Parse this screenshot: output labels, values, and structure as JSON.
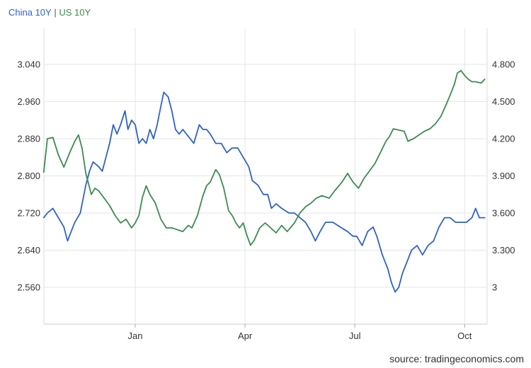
{
  "legend": {
    "items": [
      {
        "name": "China 10Y",
        "color": "#2d62c9"
      },
      {
        "name": "US 10Y",
        "color": "#3a8c50"
      }
    ],
    "separator": " | "
  },
  "source": "source: tradingeconomics.com",
  "chart_data": {
    "type": "line",
    "grid": true,
    "legend_position": "top-left",
    "x_ticks": [
      "Jan",
      "Apr",
      "Jul",
      "Oct"
    ],
    "x_tick_positions": [
      1.0,
      4.0,
      7.0,
      10.0
    ],
    "x_range": [
      -1.5,
      10.6
    ],
    "y_left": {
      "range": [
        2.5,
        3.1
      ],
      "ticks": [
        3.04,
        2.96,
        2.88,
        2.8,
        2.72,
        2.64,
        2.56
      ],
      "tick_labels": [
        "3.040",
        "2.960",
        "2.880",
        "2.800",
        "2.720",
        "2.640",
        "2.560"
      ]
    },
    "y_right": {
      "range": [
        2.8,
        5.0
      ],
      "ticks": [
        4.8,
        4.5,
        4.2,
        3.9,
        3.6,
        3.3,
        3.0
      ],
      "tick_labels": [
        "4.800",
        "4.500",
        "4.200",
        "3.900",
        "3.600",
        "3.300",
        "3"
      ]
    },
    "series": [
      {
        "name": "China 10Y",
        "axis": "left",
        "color": "#2d62c9",
        "points": [
          [
            -1.5,
            2.71
          ],
          [
            -1.4,
            2.72
          ],
          [
            -1.25,
            2.73
          ],
          [
            -1.1,
            2.71
          ],
          [
            -0.95,
            2.69
          ],
          [
            -0.85,
            2.66
          ],
          [
            -0.75,
            2.68
          ],
          [
            -0.65,
            2.7
          ],
          [
            -0.5,
            2.72
          ],
          [
            -0.35,
            2.78
          ],
          [
            -0.25,
            2.81
          ],
          [
            -0.15,
            2.83
          ],
          [
            0.0,
            2.82
          ],
          [
            0.1,
            2.81
          ],
          [
            0.2,
            2.84
          ],
          [
            0.3,
            2.87
          ],
          [
            0.4,
            2.91
          ],
          [
            0.5,
            2.89
          ],
          [
            0.6,
            2.91
          ],
          [
            0.72,
            2.94
          ],
          [
            0.8,
            2.9
          ],
          [
            0.9,
            2.92
          ],
          [
            1.0,
            2.91
          ],
          [
            1.1,
            2.87
          ],
          [
            1.2,
            2.88
          ],
          [
            1.3,
            2.87
          ],
          [
            1.4,
            2.9
          ],
          [
            1.5,
            2.88
          ],
          [
            1.6,
            2.91
          ],
          [
            1.7,
            2.95
          ],
          [
            1.78,
            2.98
          ],
          [
            1.9,
            2.97
          ],
          [
            2.0,
            2.94
          ],
          [
            2.1,
            2.9
          ],
          [
            2.2,
            2.89
          ],
          [
            2.3,
            2.9
          ],
          [
            2.5,
            2.88
          ],
          [
            2.6,
            2.87
          ],
          [
            2.75,
            2.91
          ],
          [
            2.85,
            2.9
          ],
          [
            2.95,
            2.9
          ],
          [
            3.05,
            2.89
          ],
          [
            3.2,
            2.87
          ],
          [
            3.35,
            2.87
          ],
          [
            3.5,
            2.85
          ],
          [
            3.65,
            2.86
          ],
          [
            3.8,
            2.86
          ],
          [
            3.95,
            2.84
          ],
          [
            4.1,
            2.82
          ],
          [
            4.2,
            2.79
          ],
          [
            4.35,
            2.78
          ],
          [
            4.5,
            2.76
          ],
          [
            4.62,
            2.76
          ],
          [
            4.72,
            2.73
          ],
          [
            4.85,
            2.74
          ],
          [
            5.0,
            2.73
          ],
          [
            5.2,
            2.72
          ],
          [
            5.35,
            2.72
          ],
          [
            5.5,
            2.71
          ],
          [
            5.65,
            2.7
          ],
          [
            5.8,
            2.68
          ],
          [
            5.92,
            2.66
          ],
          [
            6.05,
            2.68
          ],
          [
            6.2,
            2.7
          ],
          [
            6.4,
            2.7
          ],
          [
            6.6,
            2.69
          ],
          [
            6.8,
            2.68
          ],
          [
            6.95,
            2.67
          ],
          [
            7.05,
            2.67
          ],
          [
            7.2,
            2.65
          ],
          [
            7.35,
            2.68
          ],
          [
            7.5,
            2.69
          ],
          [
            7.6,
            2.67
          ],
          [
            7.75,
            2.63
          ],
          [
            7.9,
            2.6
          ],
          [
            8.0,
            2.57
          ],
          [
            8.1,
            2.55
          ],
          [
            8.2,
            2.56
          ],
          [
            8.3,
            2.59
          ],
          [
            8.4,
            2.61
          ],
          [
            8.55,
            2.64
          ],
          [
            8.7,
            2.65
          ],
          [
            8.85,
            2.63
          ],
          [
            9.0,
            2.65
          ],
          [
            9.15,
            2.66
          ],
          [
            9.3,
            2.69
          ],
          [
            9.45,
            2.71
          ],
          [
            9.6,
            2.71
          ],
          [
            9.75,
            2.7
          ],
          [
            9.9,
            2.7
          ],
          [
            10.05,
            2.7
          ],
          [
            10.2,
            2.71
          ],
          [
            10.3,
            2.73
          ],
          [
            10.4,
            2.71
          ],
          [
            10.55,
            2.71
          ]
        ]
      },
      {
        "name": "US 10Y",
        "axis": "right",
        "color": "#3a8c50",
        "points": [
          [
            -1.5,
            3.93
          ],
          [
            -1.4,
            4.2
          ],
          [
            -1.25,
            4.21
          ],
          [
            -1.1,
            4.07
          ],
          [
            -0.95,
            3.97
          ],
          [
            -0.8,
            4.08
          ],
          [
            -0.65,
            4.18
          ],
          [
            -0.55,
            4.23
          ],
          [
            -0.45,
            4.12
          ],
          [
            -0.35,
            3.92
          ],
          [
            -0.2,
            3.75
          ],
          [
            -0.1,
            3.8
          ],
          [
            0.0,
            3.78
          ],
          [
            0.15,
            3.72
          ],
          [
            0.3,
            3.66
          ],
          [
            0.45,
            3.58
          ],
          [
            0.6,
            3.52
          ],
          [
            0.75,
            3.55
          ],
          [
            0.9,
            3.48
          ],
          [
            1.0,
            3.52
          ],
          [
            1.1,
            3.58
          ],
          [
            1.2,
            3.73
          ],
          [
            1.3,
            3.82
          ],
          [
            1.4,
            3.75
          ],
          [
            1.55,
            3.68
          ],
          [
            1.7,
            3.55
          ],
          [
            1.85,
            3.48
          ],
          [
            2.0,
            3.48
          ],
          [
            2.1,
            3.47
          ],
          [
            2.3,
            3.45
          ],
          [
            2.45,
            3.5
          ],
          [
            2.55,
            3.48
          ],
          [
            2.7,
            3.58
          ],
          [
            2.85,
            3.74
          ],
          [
            2.95,
            3.82
          ],
          [
            3.05,
            3.85
          ],
          [
            3.2,
            3.95
          ],
          [
            3.3,
            3.91
          ],
          [
            3.42,
            3.8
          ],
          [
            3.55,
            3.62
          ],
          [
            3.65,
            3.58
          ],
          [
            3.75,
            3.52
          ],
          [
            3.85,
            3.48
          ],
          [
            3.95,
            3.52
          ],
          [
            4.05,
            3.42
          ],
          [
            4.15,
            3.34
          ],
          [
            4.25,
            3.38
          ],
          [
            4.4,
            3.48
          ],
          [
            4.55,
            3.52
          ],
          [
            4.7,
            3.48
          ],
          [
            4.85,
            3.44
          ],
          [
            5.0,
            3.5
          ],
          [
            5.15,
            3.45
          ],
          [
            5.35,
            3.52
          ],
          [
            5.5,
            3.6
          ],
          [
            5.65,
            3.65
          ],
          [
            5.8,
            3.68
          ],
          [
            5.95,
            3.72
          ],
          [
            6.1,
            3.74
          ],
          [
            6.3,
            3.72
          ],
          [
            6.45,
            3.78
          ],
          [
            6.65,
            3.85
          ],
          [
            6.8,
            3.92
          ],
          [
            6.95,
            3.85
          ],
          [
            7.1,
            3.8
          ],
          [
            7.25,
            3.88
          ],
          [
            7.4,
            3.94
          ],
          [
            7.55,
            4.0
          ],
          [
            7.7,
            4.09
          ],
          [
            7.85,
            4.18
          ],
          [
            7.95,
            4.22
          ],
          [
            8.05,
            4.28
          ],
          [
            8.2,
            4.27
          ],
          [
            8.35,
            4.26
          ],
          [
            8.45,
            4.18
          ],
          [
            8.6,
            4.2
          ],
          [
            8.75,
            4.23
          ],
          [
            8.9,
            4.26
          ],
          [
            9.05,
            4.28
          ],
          [
            9.2,
            4.32
          ],
          [
            9.35,
            4.38
          ],
          [
            9.5,
            4.48
          ],
          [
            9.6,
            4.55
          ],
          [
            9.72,
            4.64
          ],
          [
            9.8,
            4.73
          ],
          [
            9.9,
            4.75
          ],
          [
            10.0,
            4.71
          ],
          [
            10.1,
            4.68
          ],
          [
            10.2,
            4.66
          ],
          [
            10.3,
            4.66
          ],
          [
            10.45,
            4.65
          ],
          [
            10.55,
            4.68
          ]
        ]
      }
    ]
  }
}
